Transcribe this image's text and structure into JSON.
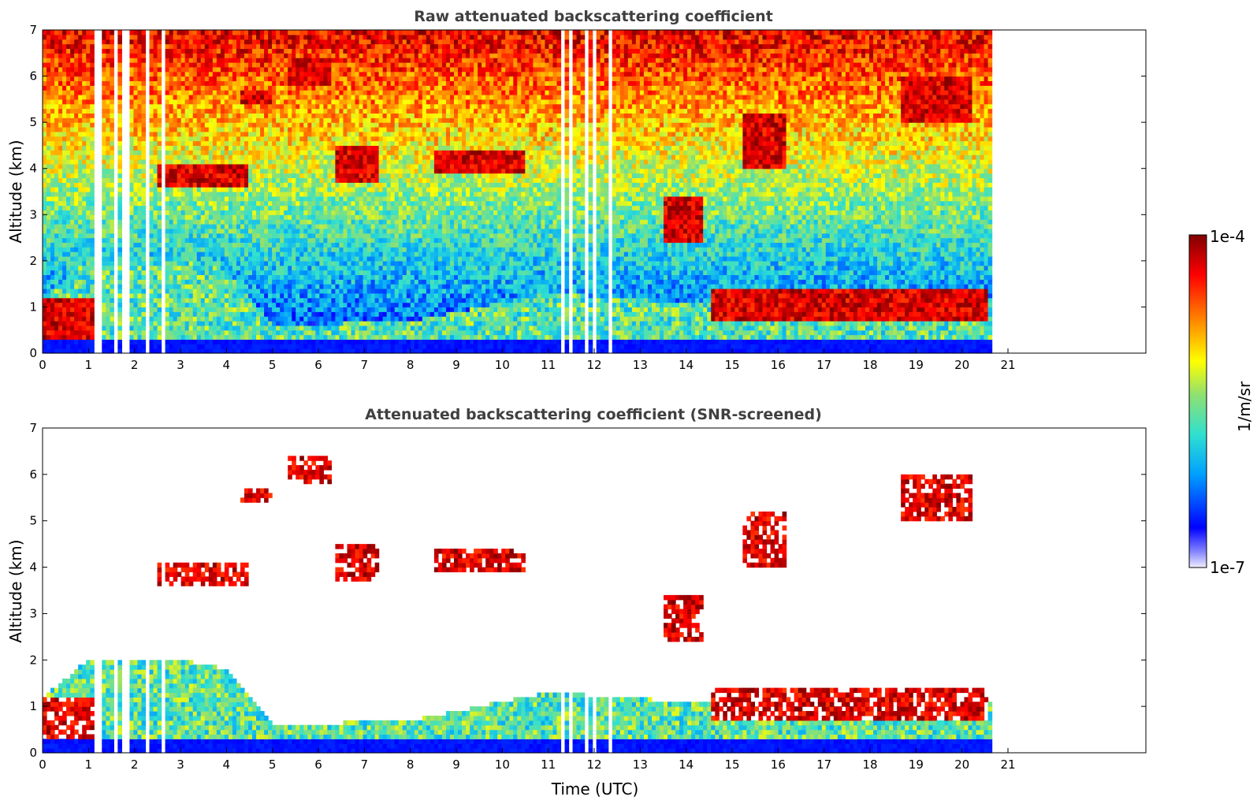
{
  "chart_data": [
    {
      "type": "heatmap",
      "title": "Raw attenuated backscattering coefficient",
      "xlabel": "",
      "ylabel": "Altitude (km)",
      "x_ticks": [
        "0",
        "1",
        "2",
        "3",
        "4",
        "5",
        "6",
        "7",
        "8",
        "9",
        "10",
        "11",
        "12",
        "13",
        "14",
        "15",
        "16",
        "17",
        "18",
        "19",
        "20",
        "21"
      ],
      "y_ticks": [
        "0",
        "1",
        "2",
        "3",
        "4",
        "5",
        "6",
        "7"
      ],
      "xlim": [
        0,
        24
      ],
      "ylim": [
        0,
        7
      ],
      "data_extent_hours": [
        0,
        20.65
      ],
      "boundary_layer_top_km": [
        [
          0,
          1.2
        ],
        [
          1,
          2.0
        ],
        [
          3,
          2.0
        ],
        [
          4,
          1.8
        ],
        [
          5,
          0.6
        ],
        [
          8,
          0.7
        ],
        [
          11,
          1.3
        ],
        [
          14,
          1.1
        ],
        [
          16,
          1.2
        ],
        [
          17,
          0.85
        ],
        [
          17.8,
          0.8
        ],
        [
          18.2,
          1.2
        ],
        [
          19,
          1.2
        ],
        [
          20,
          1.2
        ],
        [
          20.6,
          1.1
        ]
      ],
      "clouds_km": [
        {
          "t0": 0.0,
          "t1": 1.2,
          "z0": 0.3,
          "z1": 1.2
        },
        {
          "t0": 2.5,
          "t1": 4.5,
          "z0": 3.6,
          "z1": 4.1
        },
        {
          "t0": 4.3,
          "t1": 5.0,
          "z0": 5.4,
          "z1": 5.7
        },
        {
          "t0": 5.3,
          "t1": 6.3,
          "z0": 5.8,
          "z1": 6.4
        },
        {
          "t0": 6.4,
          "t1": 7.3,
          "z0": 3.7,
          "z1": 4.5
        },
        {
          "t0": 8.5,
          "t1": 10.5,
          "z0": 3.9,
          "z1": 4.4
        },
        {
          "t0": 13.5,
          "t1": 14.4,
          "z0": 2.4,
          "z1": 3.4
        },
        {
          "t0": 15.2,
          "t1": 16.2,
          "z0": 4.0,
          "z1": 5.2
        },
        {
          "t0": 18.7,
          "t1": 20.2,
          "z0": 5.0,
          "z1": 6.0
        },
        {
          "t0": 14.5,
          "t1": 20.6,
          "z0": 0.7,
          "z1": 1.4
        }
      ],
      "grid": false
    },
    {
      "type": "heatmap",
      "title": "Attenuated backscattering coefficient (SNR-screened)",
      "xlabel": "Time (UTC)",
      "ylabel": "Altitude (km)",
      "x_ticks": [
        "0",
        "1",
        "2",
        "3",
        "4",
        "5",
        "6",
        "7",
        "8",
        "9",
        "10",
        "11",
        "12",
        "13",
        "14",
        "15",
        "16",
        "17",
        "18",
        "19",
        "20",
        "21"
      ],
      "y_ticks": [
        "0",
        "1",
        "2",
        "3",
        "4",
        "5",
        "6",
        "7"
      ],
      "xlim": [
        0,
        24
      ],
      "ylim": [
        0,
        7
      ],
      "data_extent_hours": [
        0,
        20.65
      ],
      "grid": false
    }
  ],
  "colorbar": {
    "label": "1/m/sr",
    "max_label": "1e-4",
    "min_label": "1e-7",
    "scale": "log",
    "colormap": [
      "#e8e8f8",
      "#0000ff",
      "#00aaff",
      "#40e0d0",
      "#a0e060",
      "#ffff00",
      "#ff8000",
      "#ff0000",
      "#800000"
    ]
  }
}
